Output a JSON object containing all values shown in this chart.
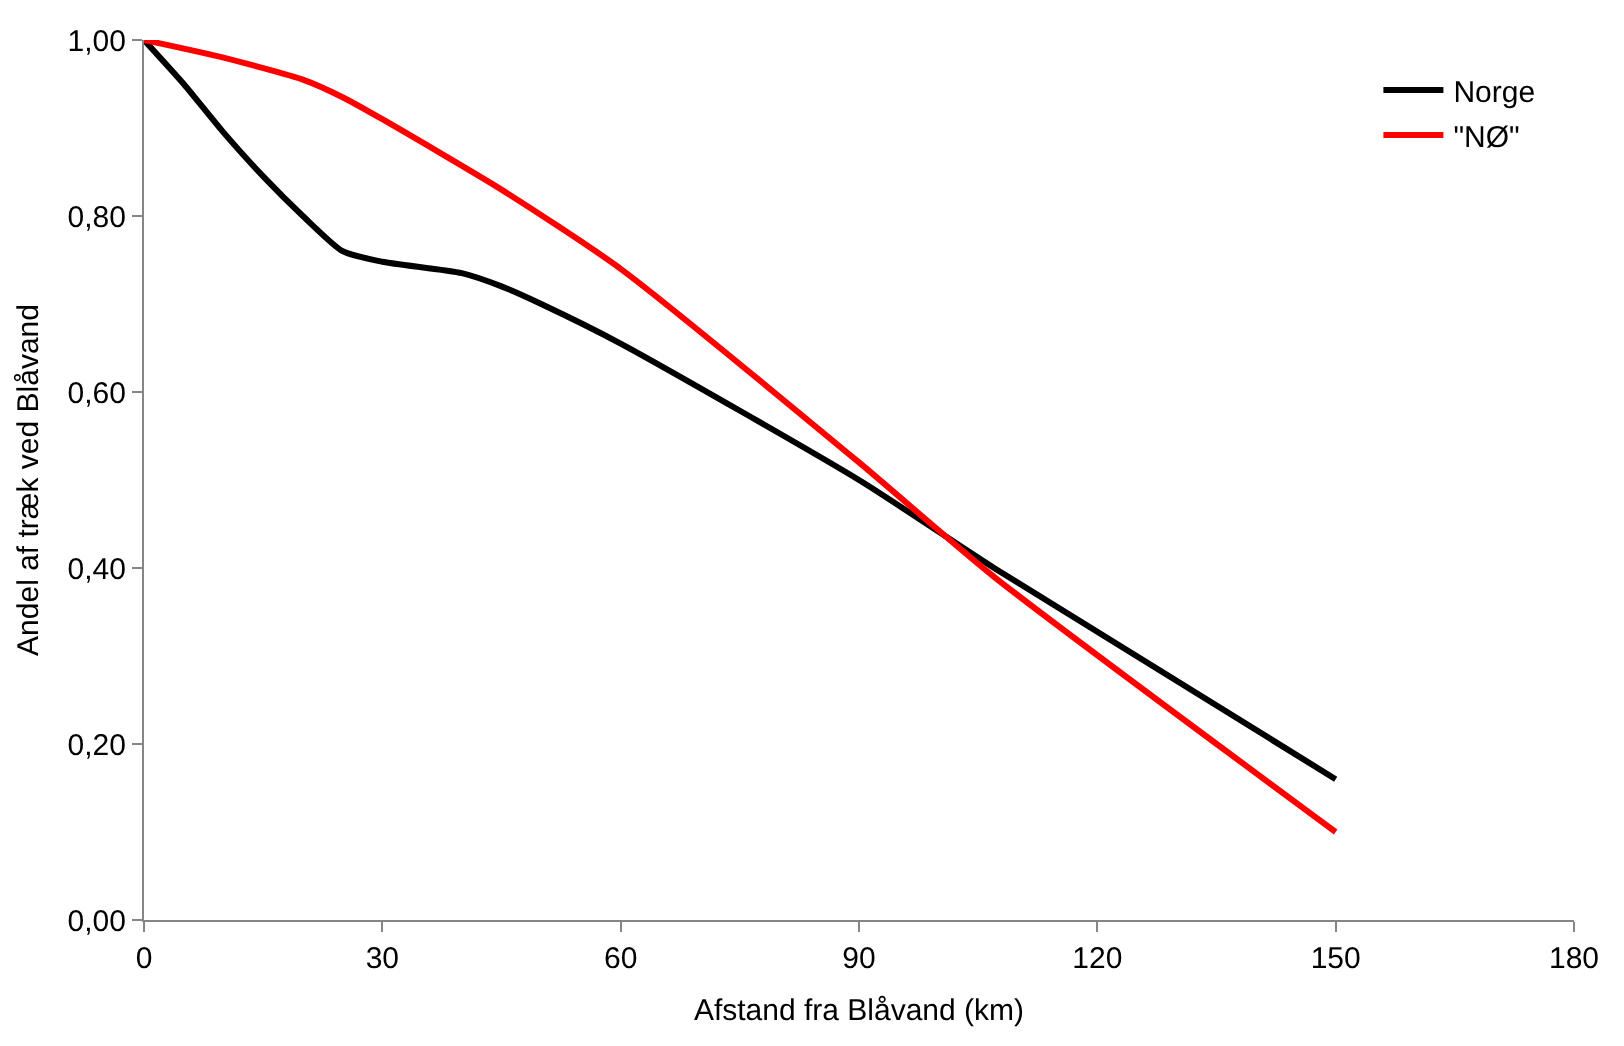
{
  "chart_data": {
    "type": "line",
    "xlabel": "Afstand fra Blåvand (km)",
    "ylabel": "Andel af træk ved Blåvand",
    "xlim": [
      0,
      180
    ],
    "xticks": [
      0,
      30,
      60,
      90,
      120,
      150,
      180
    ],
    "ylim": [
      0,
      1
    ],
    "yticks": [
      {
        "value": 0,
        "label": "0,00"
      },
      {
        "value": 0.2,
        "label": "0,20"
      },
      {
        "value": 0.4,
        "label": "0,40"
      },
      {
        "value": 0.6,
        "label": "0,60"
      },
      {
        "value": 0.8,
        "label": "0,80"
      },
      {
        "value": 1,
        "label": "1,00"
      }
    ],
    "grid": false,
    "legend": "top right",
    "marker": "none",
    "line_style": "solid",
    "series": [
      {
        "name": "Norge",
        "color": "#000000",
        "x": [
          0,
          5,
          10,
          15,
          20,
          25,
          30,
          40,
          45,
          50,
          60,
          90,
          107,
          150
        ],
        "values": [
          1.0,
          0.95,
          0.895,
          0.845,
          0.8,
          0.76,
          0.748,
          0.735,
          0.72,
          0.7,
          0.655,
          0.5,
          0.4,
          0.16
        ]
      },
      {
        "name": "\"NØ\"",
        "color": "#ff0000",
        "x": [
          0,
          10,
          20,
          25,
          30,
          45,
          60,
          90,
          107,
          150
        ],
        "values": [
          1.0,
          0.98,
          0.955,
          0.935,
          0.91,
          0.83,
          0.74,
          0.52,
          0.39,
          0.1
        ]
      }
    ]
  }
}
